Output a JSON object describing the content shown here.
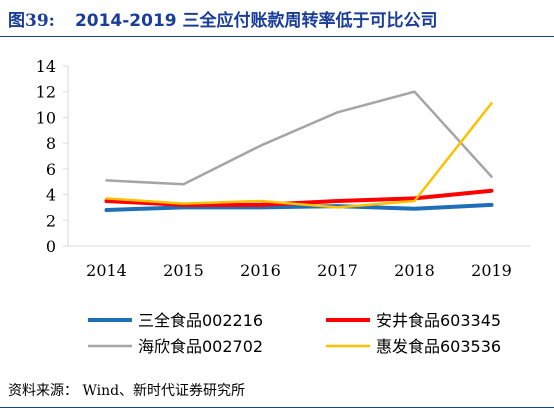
{
  "header": {
    "label": "图39:",
    "title": "2014-2019 三全应付账款周转率低于可比公司"
  },
  "source": "资料来源： Wind、新时代证券研究所",
  "chart_data": {
    "type": "line",
    "x": [
      "2014",
      "2015",
      "2016",
      "2017",
      "2018",
      "2019"
    ],
    "ylim": [
      0,
      14
    ],
    "yticks": [
      0,
      2,
      4,
      6,
      8,
      10,
      12,
      14
    ],
    "series": [
      {
        "name": "三全食品002216",
        "color": "#1f6fb8",
        "width": 4,
        "values": [
          2.8,
          3.0,
          3.0,
          3.1,
          2.9,
          3.2
        ]
      },
      {
        "name": "安井食品603345",
        "color": "#ff0000",
        "width": 4,
        "values": [
          3.5,
          3.2,
          3.2,
          3.5,
          3.7,
          4.3
        ]
      },
      {
        "name": "海欣食品002702",
        "color": "#a5a5a5",
        "width": 2.5,
        "values": [
          5.1,
          4.8,
          7.8,
          10.4,
          12.0,
          5.4
        ]
      },
      {
        "name": "惠发食品603536",
        "color": "#ffc000",
        "width": 2.5,
        "values": [
          3.7,
          3.3,
          3.5,
          3.0,
          3.5,
          11.1
        ]
      }
    ]
  }
}
